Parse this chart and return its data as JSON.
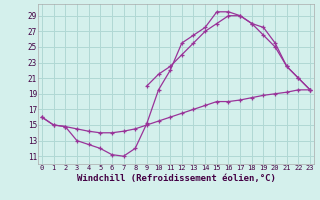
{
  "background_color": "#d4f0ec",
  "grid_color": "#b0d8d4",
  "line_color": "#993399",
  "marker_color": "#993399",
  "xlabel": "Windchill (Refroidissement éolien,°C)",
  "xlabel_fontsize": 6.5,
  "ytick_labels": [
    "11",
    "13",
    "15",
    "17",
    "19",
    "21",
    "23",
    "25",
    "27",
    "29"
  ],
  "ytick_values": [
    11,
    13,
    15,
    17,
    19,
    21,
    23,
    25,
    27,
    29
  ],
  "xtick_labels": [
    "0",
    "1",
    "2",
    "3",
    "4",
    "5",
    "6",
    "7",
    "8",
    "9",
    "10",
    "11",
    "12",
    "13",
    "14",
    "15",
    "16",
    "17",
    "18",
    "19",
    "20",
    "21",
    "22",
    "23"
  ],
  "xtick_values": [
    0,
    1,
    2,
    3,
    4,
    5,
    6,
    7,
    8,
    9,
    10,
    11,
    12,
    13,
    14,
    15,
    16,
    17,
    18,
    19,
    20,
    21,
    22,
    23
  ],
  "xlim": [
    -0.3,
    23.3
  ],
  "ylim": [
    10,
    30.5
  ],
  "line1_x": [
    0,
    1,
    2,
    3,
    4,
    5,
    6,
    7,
    8,
    9,
    10,
    11,
    12,
    13,
    14,
    15,
    16,
    17,
    18,
    19,
    20,
    21,
    22,
    23
  ],
  "line1_y": [
    16.0,
    15.0,
    14.8,
    14.5,
    14.2,
    14.0,
    14.0,
    14.2,
    14.5,
    15.0,
    15.5,
    16.0,
    16.5,
    17.0,
    17.5,
    18.0,
    18.0,
    18.2,
    18.5,
    18.8,
    19.0,
    19.2,
    19.5,
    19.5
  ],
  "line2_x": [
    0,
    1,
    2,
    3,
    4,
    5,
    6,
    7,
    8,
    9,
    10,
    11,
    12,
    13,
    14,
    15,
    16,
    17,
    18,
    19,
    20,
    21,
    22,
    23
  ],
  "line2_y": [
    16.0,
    15.0,
    14.8,
    13.0,
    12.5,
    12.0,
    11.2,
    11.0,
    12.0,
    15.2,
    19.5,
    22.0,
    25.5,
    26.5,
    27.5,
    29.5,
    29.5,
    29.0,
    28.0,
    27.5,
    25.5,
    22.5,
    21.0,
    19.5
  ],
  "line3_x": [
    9,
    10,
    11,
    12,
    13,
    14,
    15,
    16,
    17,
    18,
    19,
    20,
    21,
    22,
    23
  ],
  "line3_y": [
    20.0,
    21.5,
    22.5,
    24.0,
    25.5,
    27.0,
    28.0,
    29.0,
    29.0,
    28.0,
    26.5,
    25.0,
    22.5,
    21.0,
    19.5
  ]
}
